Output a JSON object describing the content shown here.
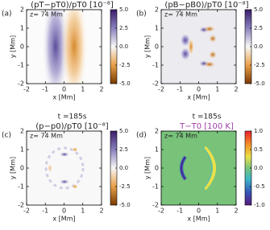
{
  "chart_data": [
    {
      "type": "image",
      "panel_label": "(a)",
      "title": "(pT−pT0)/pT0 [10⁻⁸]",
      "annotation": "z= 74 Mm",
      "xlabel": "x [Mm]",
      "ylabel": "y [Mm]",
      "xlim": [
        -2,
        2
      ],
      "ylim": [
        -2,
        2
      ],
      "xticks": [
        -2,
        -1,
        0,
        1,
        2
      ],
      "yticks": [
        -2,
        -1,
        0,
        1,
        2
      ],
      "clim": [
        -5,
        5
      ],
      "cticks": [
        {
          "value": -5,
          "label": "-5.0"
        },
        {
          "value": -2.5,
          "label": "-2.5"
        },
        {
          "value": 0,
          "label": "0.0"
        },
        {
          "value": 2.5,
          "label": "2.5"
        },
        {
          "value": 5,
          "label": "5.0"
        }
      ],
      "colormap": "diverging"
    },
    {
      "type": "image",
      "panel_label": "(b)",
      "title": "(pB−pB0)/pT0 [10⁻⁸]",
      "annotation": "z= 74 Mm",
      "xlabel": "x [Mm]",
      "ylabel": "y [Mm]",
      "xlim": [
        -2,
        2
      ],
      "ylim": [
        -2,
        2
      ],
      "xticks": [
        -2,
        -1,
        0,
        1,
        2
      ],
      "yticks": [
        -2,
        -1,
        0,
        1,
        2
      ],
      "clim": [
        -5,
        5
      ],
      "cticks": [
        {
          "value": -5,
          "label": "-5.0"
        },
        {
          "value": -2.5,
          "label": "-2.5"
        },
        {
          "value": 0,
          "label": "0.0"
        },
        {
          "value": 2.5,
          "label": "2.5"
        },
        {
          "value": 5,
          "label": "5.0"
        }
      ],
      "colormap": "diverging"
    },
    {
      "type": "image",
      "panel_label": "(c)",
      "time": "t =185s",
      "title": "(p−p0)/pT0 [10⁻⁸]",
      "annotation": "z= 74 Mm",
      "xlabel": "x [Mm]",
      "ylabel": "y [Mm]",
      "xlim": [
        -2,
        2
      ],
      "ylim": [
        -2,
        2
      ],
      "xticks": [
        -2,
        -1,
        0,
        1,
        2
      ],
      "yticks": [
        -2,
        -1,
        0,
        1,
        2
      ],
      "clim": [
        -5,
        5
      ],
      "cticks": [
        {
          "value": -5,
          "label": "-5.0"
        },
        {
          "value": -2.5,
          "label": "-2.5"
        },
        {
          "value": 0,
          "label": "0.0"
        },
        {
          "value": 2.5,
          "label": "2.5"
        },
        {
          "value": 5,
          "label": "5.0"
        }
      ],
      "colormap": "diverging"
    },
    {
      "type": "image",
      "panel_label": "(d)",
      "time": "t =185s",
      "title": "T−T0 [100 K]",
      "title_color": "#a040a8",
      "annotation": "z= 74 Mm",
      "xlabel": "x [Mm]",
      "ylabel": "y [Mm]",
      "xlim": [
        -2,
        2
      ],
      "ylim": [
        -2,
        2
      ],
      "xticks": [
        -2,
        -1,
        0,
        1,
        2
      ],
      "yticks": [
        -2,
        -1,
        0,
        1,
        2
      ],
      "clim": [
        -1,
        1
      ],
      "cticks": [
        {
          "value": -1,
          "label": "-1.0"
        },
        {
          "value": -0.5,
          "label": "-0.5"
        },
        {
          "value": 0,
          "label": "0.0"
        },
        {
          "value": 0.5,
          "label": "0.5"
        },
        {
          "value": 1,
          "label": "1.0"
        }
      ],
      "colormap": "rainbow"
    }
  ]
}
